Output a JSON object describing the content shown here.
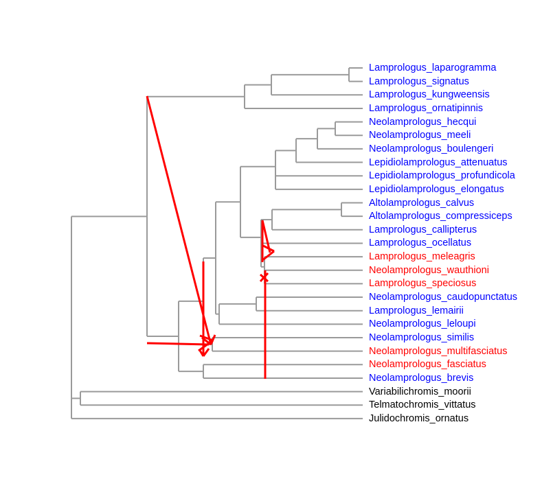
{
  "tree": {
    "branch_color": "#9a9a9a",
    "tips": [
      {
        "label": "Lamprologus_laparogramma",
        "color": "#0000ff"
      },
      {
        "label": "Lamprologus_signatus",
        "color": "#0000ff"
      },
      {
        "label": "Lamprologus_kungweensis",
        "color": "#0000ff"
      },
      {
        "label": "Lamprologus_ornatipinnis",
        "color": "#0000ff"
      },
      {
        "label": "Neolamprologus_hecqui",
        "color": "#0000ff"
      },
      {
        "label": "Neolamprologus_meeli",
        "color": "#0000ff"
      },
      {
        "label": "Neolamprologus_boulengeri",
        "color": "#0000ff"
      },
      {
        "label": "Lepidiolamprologus_attenuatus",
        "color": "#0000ff"
      },
      {
        "label": "Lepidiolamprologus_profundicola",
        "color": "#0000ff"
      },
      {
        "label": "Lepidiolamprologus_elongatus",
        "color": "#0000ff"
      },
      {
        "label": "Altolamprologus_calvus",
        "color": "#0000ff"
      },
      {
        "label": "Altolamprologus_compressiceps",
        "color": "#0000ff"
      },
      {
        "label": "Lamprologus_callipterus",
        "color": "#0000ff"
      },
      {
        "label": "Lamprologus_ocellatus",
        "color": "#0000ff"
      },
      {
        "label": "Lamprologus_meleagris",
        "color": "#ff0000"
      },
      {
        "label": "Neolamprologus_wauthioni",
        "color": "#ff0000"
      },
      {
        "label": "Lamprologus_speciosus",
        "color": "#ff0000"
      },
      {
        "label": "Neolamprologus_caudopunctatus",
        "color": "#0000ff"
      },
      {
        "label": "Lamprologus_lemairii",
        "color": "#0000ff"
      },
      {
        "label": "Neolamprologus_leloupi",
        "color": "#0000ff"
      },
      {
        "label": "Neolamprologus_similis",
        "color": "#0000ff"
      },
      {
        "label": "Neolamprologus_multifasciatus",
        "color": "#ff0000"
      },
      {
        "label": "Neolamprologus_fasciatus",
        "color": "#ff0000"
      },
      {
        "label": "Neolamprologus_brevis",
        "color": "#0000ff"
      },
      {
        "label": "Variabilichromis_moorii",
        "color": "#000000"
      },
      {
        "label": "Telmatochromis_vittatus",
        "color": "#000000"
      },
      {
        "label": "Julidochromis_ornatus",
        "color": "#000000"
      }
    ]
  },
  "annotations": {
    "arrow_color": "#ff0000"
  }
}
